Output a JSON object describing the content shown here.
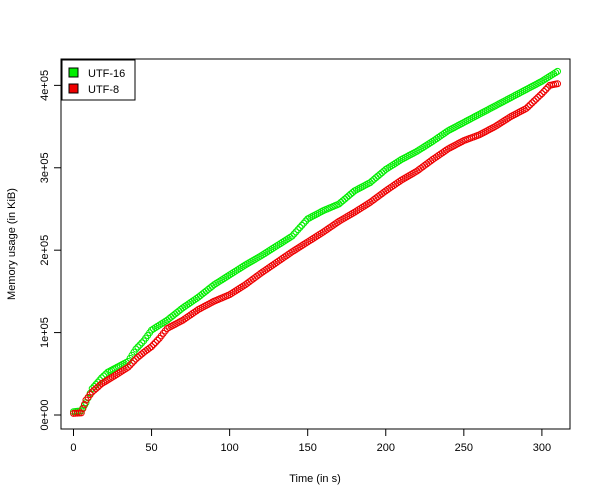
{
  "chart_data": {
    "type": "scatter",
    "title": "",
    "xlabel": "Time (in s)",
    "ylabel": "Memory usage (in KiB)",
    "xlim": [
      -8,
      318
    ],
    "ylim": [
      -17000,
      432000
    ],
    "x_ticks": [
      0,
      50,
      100,
      150,
      200,
      250,
      300
    ],
    "x_tick_labels": [
      "0",
      "50",
      "100",
      "150",
      "200",
      "250",
      "300"
    ],
    "y_ticks": [
      0,
      100000,
      200000,
      300000,
      400000
    ],
    "y_tick_labels": [
      "0e+00",
      "1e+05",
      "2e+05",
      "3e+05",
      "4e+05"
    ],
    "legend_position": "top-left",
    "marker": "open-circle",
    "series": [
      {
        "name": "UTF-16",
        "color": "#00ee00",
        "points": [
          [
            0,
            4000
          ],
          [
            5,
            5000
          ],
          [
            8,
            15000
          ],
          [
            12,
            32000
          ],
          [
            18,
            45000
          ],
          [
            22,
            52000
          ],
          [
            30,
            60000
          ],
          [
            35,
            65000
          ],
          [
            40,
            80000
          ],
          [
            45,
            90000
          ],
          [
            50,
            103000
          ],
          [
            60,
            115000
          ],
          [
            70,
            130000
          ],
          [
            80,
            143000
          ],
          [
            90,
            158000
          ],
          [
            100,
            170000
          ],
          [
            110,
            182000
          ],
          [
            120,
            193000
          ],
          [
            130,
            205000
          ],
          [
            140,
            217000
          ],
          [
            150,
            238000
          ],
          [
            160,
            248000
          ],
          [
            170,
            256000
          ],
          [
            180,
            272000
          ],
          [
            190,
            282000
          ],
          [
            200,
            298000
          ],
          [
            210,
            310000
          ],
          [
            220,
            320000
          ],
          [
            230,
            332000
          ],
          [
            240,
            345000
          ],
          [
            250,
            355000
          ],
          [
            260,
            365000
          ],
          [
            270,
            375000
          ],
          [
            280,
            385000
          ],
          [
            290,
            395000
          ],
          [
            300,
            405000
          ],
          [
            310,
            417000
          ]
        ]
      },
      {
        "name": "UTF-8",
        "color": "#ee0000",
        "points": [
          [
            0,
            2000
          ],
          [
            5,
            2500
          ],
          [
            8,
            18000
          ],
          [
            12,
            28000
          ],
          [
            18,
            38000
          ],
          [
            25,
            46000
          ],
          [
            30,
            52000
          ],
          [
            35,
            58000
          ],
          [
            40,
            68000
          ],
          [
            45,
            76000
          ],
          [
            50,
            83000
          ],
          [
            55,
            93000
          ],
          [
            60,
            105000
          ],
          [
            70,
            115000
          ],
          [
            80,
            128000
          ],
          [
            90,
            138000
          ],
          [
            100,
            146000
          ],
          [
            110,
            158000
          ],
          [
            120,
            172000
          ],
          [
            130,
            185000
          ],
          [
            140,
            198000
          ],
          [
            150,
            210000
          ],
          [
            160,
            222000
          ],
          [
            170,
            235000
          ],
          [
            180,
            246000
          ],
          [
            190,
            258000
          ],
          [
            200,
            272000
          ],
          [
            210,
            285000
          ],
          [
            220,
            296000
          ],
          [
            230,
            310000
          ],
          [
            240,
            323000
          ],
          [
            250,
            333000
          ],
          [
            260,
            340000
          ],
          [
            270,
            350000
          ],
          [
            280,
            362000
          ],
          [
            290,
            372000
          ],
          [
            300,
            390000
          ],
          [
            305,
            400000
          ],
          [
            310,
            402000
          ]
        ]
      }
    ]
  }
}
